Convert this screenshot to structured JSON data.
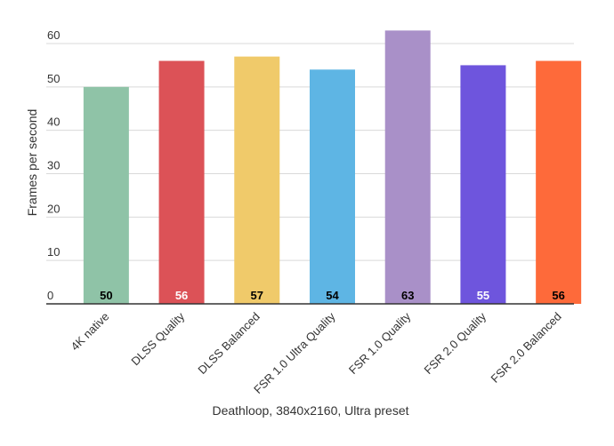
{
  "chart_data": {
    "type": "bar",
    "title": "",
    "xlabel": "Deathloop, 3840x2160, Ultra preset",
    "ylabel": "Frames per second",
    "ylim": [
      0,
      65
    ],
    "yticks": [
      0,
      10,
      20,
      30,
      40,
      50,
      60
    ],
    "grid": true,
    "legend": "none",
    "categories": [
      "4K native",
      "DLSS Quality",
      "DLSS Balanced",
      "FSR 1.0 Ultra Quality",
      "FSR 1.0 Quality",
      "FSR 2.0 Quality",
      "FSR 2.0 Balanced"
    ],
    "values": [
      50,
      56,
      57,
      54,
      63,
      55,
      56
    ],
    "colors": [
      "#8fc3a7",
      "#dc5257",
      "#f0ca6a",
      "#5eb5e4",
      "#a990c8",
      "#6e55dd",
      "#fe6a3a"
    ],
    "label_colors": [
      "#000000",
      "#ffffff",
      "#000000",
      "#000000",
      "#000000",
      "#ffffff",
      "#000000"
    ]
  }
}
